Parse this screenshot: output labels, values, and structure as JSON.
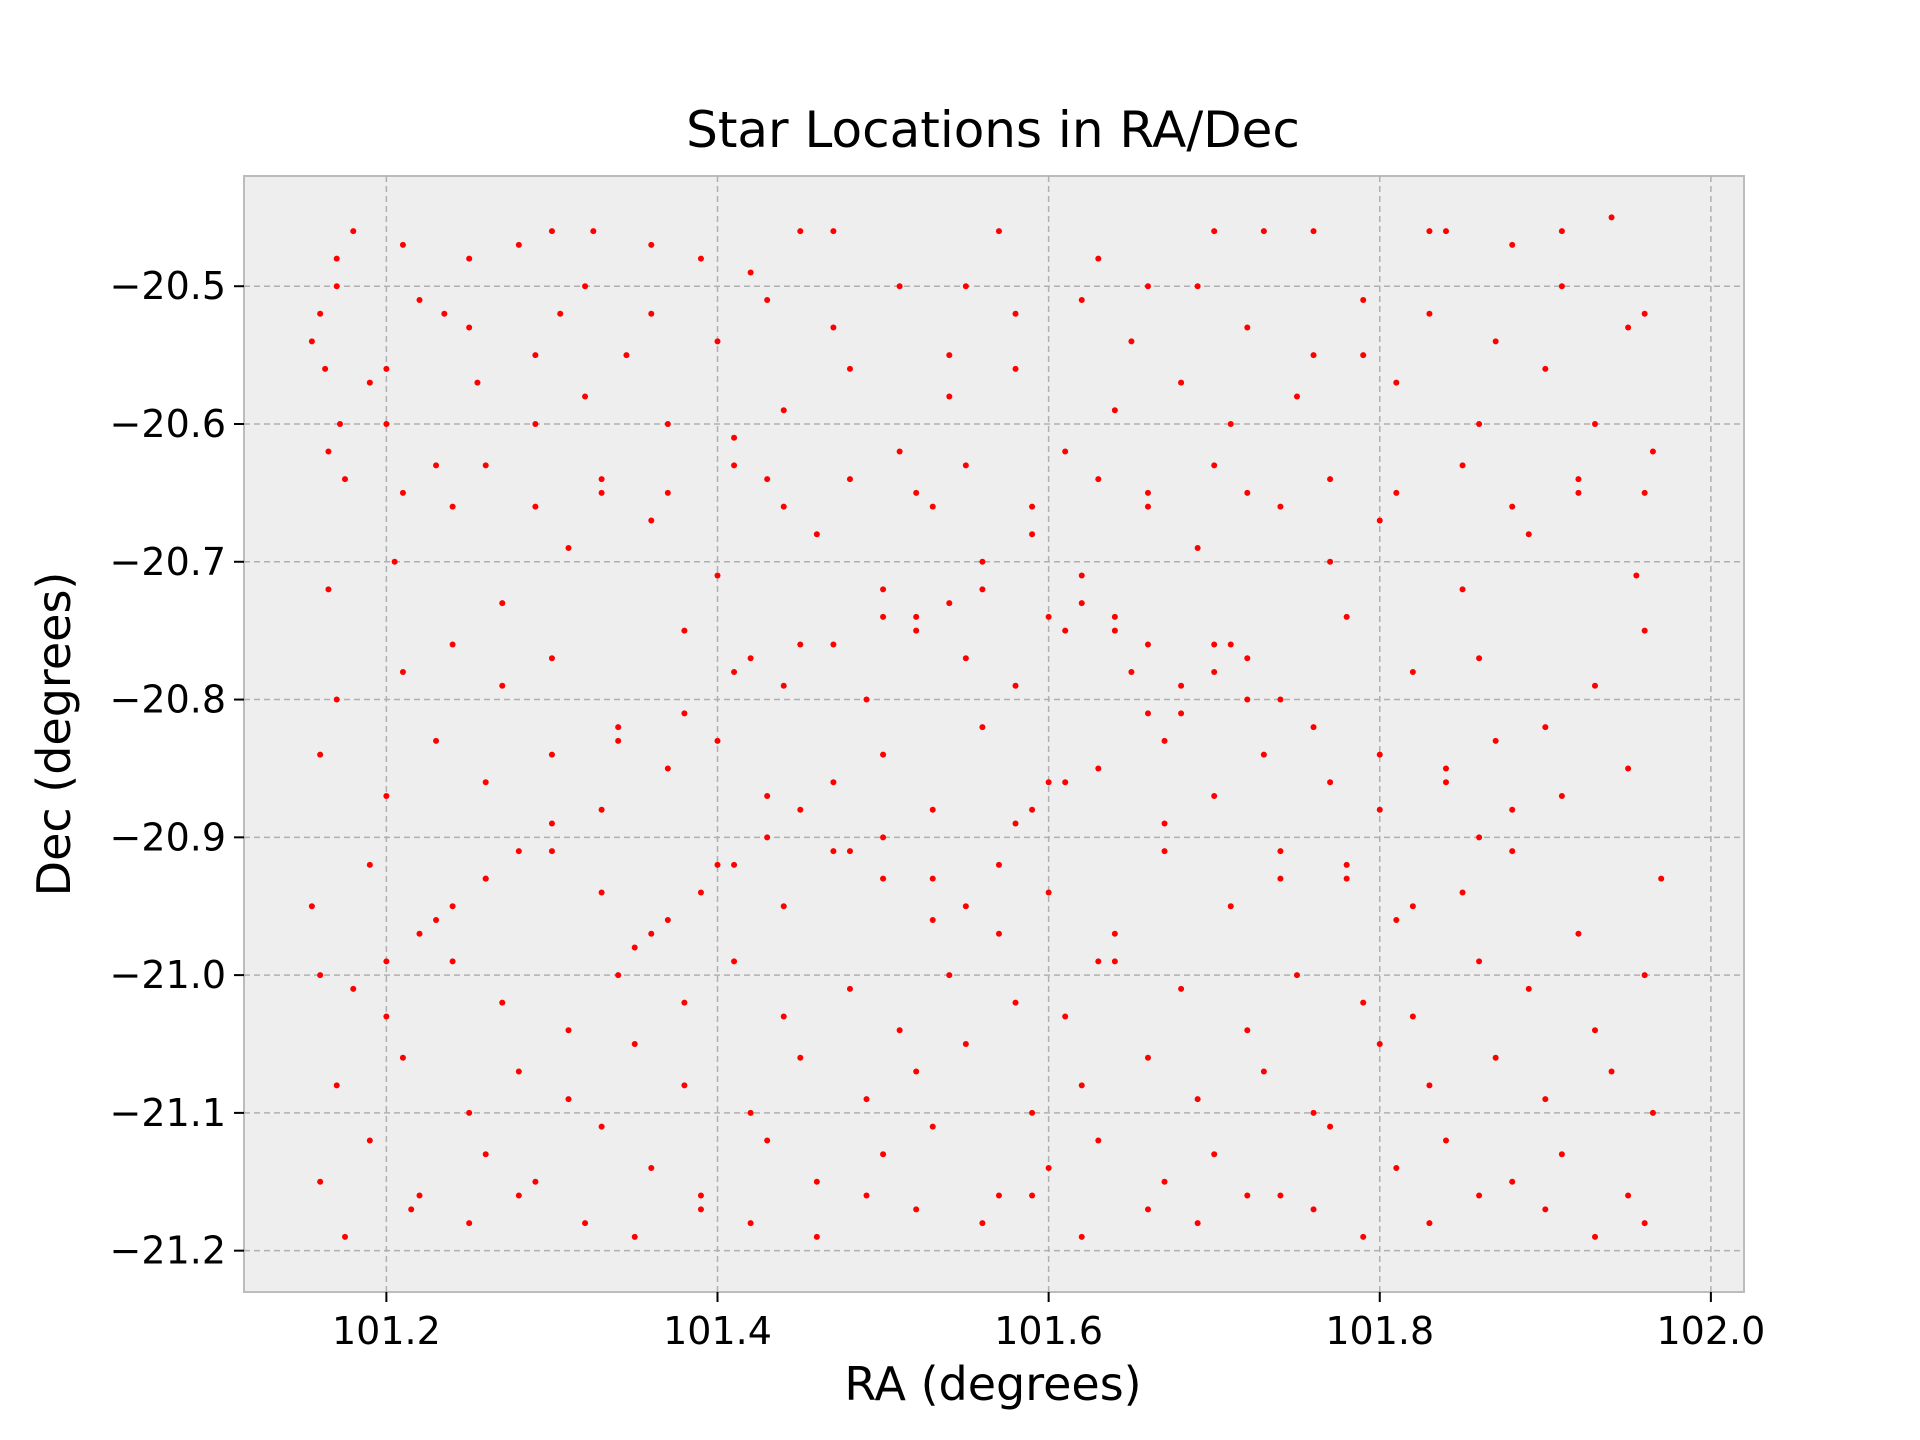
{
  "chart_data": {
    "type": "scatter",
    "title": "Star Locations in RA/Dec",
    "xlabel": "RA (degrees)",
    "ylabel": "Dec (degrees)",
    "xlim": [
      101.114,
      102.02
    ],
    "ylim": [
      -21.23,
      -20.42
    ],
    "xticks": [
      101.2,
      101.4,
      101.6,
      101.8,
      102.0
    ],
    "xtick_labels": [
      "101.2",
      "101.4",
      "101.6",
      "101.8",
      "102.0"
    ],
    "yticks": [
      -20.5,
      -20.6,
      -20.7,
      -20.8,
      -20.9,
      -21.0,
      -21.1,
      -21.2
    ],
    "ytick_labels": [
      "−20.5",
      "−20.6",
      "−20.7",
      "−20.8",
      "−20.9",
      "−21.0",
      "−21.1",
      "−21.2"
    ],
    "grid": true,
    "marker_color": "#ff0000",
    "style": {
      "axes_background": "#eeeeee",
      "axes_edge": "#bcbcbc",
      "grid_color": "#b0b0b0"
    },
    "points": {
      "x": [
        101.155,
        101.16,
        101.163,
        101.17,
        101.172,
        101.18,
        101.19,
        101.2,
        101.21,
        101.235,
        101.25,
        101.28,
        101.3,
        101.305,
        101.325,
        101.36,
        101.39,
        101.42,
        101.45,
        101.47,
        101.55,
        101.57,
        101.63,
        101.66,
        101.7,
        101.73,
        101.76,
        101.83,
        101.84,
        101.88,
        101.91,
        101.94,
        101.96,
        101.165,
        101.2,
        101.23,
        101.255,
        101.29,
        101.32,
        101.345,
        101.37,
        101.41,
        101.44,
        101.48,
        101.51,
        101.54,
        101.58,
        101.61,
        101.64,
        101.68,
        101.71,
        101.75,
        101.79,
        101.81,
        101.86,
        101.9,
        101.93,
        101.965,
        101.165,
        101.205,
        101.24,
        101.27,
        101.31,
        101.33,
        101.36,
        101.4,
        101.43,
        101.46,
        101.5,
        101.53,
        101.56,
        101.59,
        101.62,
        101.66,
        101.69,
        101.72,
        101.77,
        101.8,
        101.85,
        101.89,
        101.92,
        101.955,
        101.17,
        101.21,
        101.24,
        101.27,
        101.3,
        101.34,
        101.38,
        101.41,
        101.45,
        101.49,
        101.52,
        101.55,
        101.58,
        101.61,
        101.65,
        101.68,
        101.71,
        101.74,
        101.78,
        101.82,
        101.86,
        101.9,
        101.93,
        101.96,
        101.16,
        101.2,
        101.23,
        101.26,
        101.3,
        101.33,
        101.37,
        101.4,
        101.43,
        101.47,
        101.5,
        101.53,
        101.56,
        101.6,
        101.63,
        101.67,
        101.7,
        101.73,
        101.77,
        101.8,
        101.84,
        101.87,
        101.91,
        101.95,
        101.155,
        101.19,
        101.23,
        101.26,
        101.3,
        101.33,
        101.36,
        101.4,
        101.44,
        101.47,
        101.5,
        101.53,
        101.57,
        101.6,
        101.64,
        101.67,
        101.71,
        101.74,
        101.78,
        101.81,
        101.85,
        101.88,
        101.92,
        101.97,
        101.16,
        101.2,
        101.24,
        101.27,
        101.31,
        101.34,
        101.38,
        101.41,
        101.44,
        101.48,
        101.51,
        101.54,
        101.58,
        101.61,
        101.64,
        101.68,
        101.72,
        101.75,
        101.79,
        101.82,
        101.86,
        101.89,
        101.93,
        101.96,
        101.17,
        101.21,
        101.25,
        101.28,
        101.31,
        101.35,
        101.38,
        101.42,
        101.45,
        101.49,
        101.52,
        101.55,
        101.59,
        101.62,
        101.66,
        101.69,
        101.73,
        101.76,
        101.8,
        101.83,
        101.87,
        101.9,
        101.94,
        101.965,
        101.16,
        101.19,
        101.22,
        101.26,
        101.29,
        101.33,
        101.36,
        101.39,
        101.43,
        101.46,
        101.5,
        101.53,
        101.57,
        101.6,
        101.63,
        101.67,
        101.7,
        101.74,
        101.77,
        101.81,
        101.84,
        101.88,
        101.91,
        101.95,
        101.175,
        101.215,
        101.25,
        101.28,
        101.32,
        101.35,
        101.39,
        101.42,
        101.46,
        101.49,
        101.52,
        101.56,
        101.59,
        101.62,
        101.66,
        101.69,
        101.72,
        101.76,
        101.79,
        101.83,
        101.86,
        101.9,
        101.93,
        101.96,
        101.17,
        101.22,
        101.25,
        101.29,
        101.32,
        101.36,
        101.4,
        101.43,
        101.47,
        101.51,
        101.54,
        101.58,
        101.62,
        101.65,
        101.69,
        101.72,
        101.76,
        101.79,
        101.83,
        101.87,
        101.91,
        101.95,
        101.175,
        101.21,
        101.26,
        101.29,
        101.33,
        101.37,
        101.41,
        101.44,
        101.48,
        101.52,
        101.55,
        101.59,
        101.63,
        101.66,
        101.7,
        101.74,
        101.77,
        101.81,
        101.85,
        101.88,
        101.92,
        101.96,
        101.5,
        101.52,
        101.54,
        101.47,
        101.56,
        101.6,
        101.62,
        101.64,
        101.42,
        101.44,
        101.38,
        101.34,
        101.7,
        101.72,
        101.68,
        101.66,
        101.58,
        101.5,
        101.48,
        101.53,
        101.55,
        101.57,
        101.63,
        101.45,
        101.43,
        101.41,
        101.39,
        101.37,
        101.35,
        101.61,
        101.59,
        101.67,
        101.74,
        101.78,
        101.82,
        101.86,
        101.88,
        101.84,
        101.8,
        101.76,
        101.72,
        101.7,
        101.66,
        101.64,
        101.3,
        101.28,
        101.26,
        101.24,
        101.22,
        101.2,
        101.18
      ],
      "y": [
        -20.54,
        -20.52,
        -20.56,
        -20.48,
        -20.6,
        -20.46,
        -20.57,
        -20.56,
        -20.47,
        -20.52,
        -20.48,
        -20.47,
        -20.46,
        -20.52,
        -20.46,
        -20.47,
        -20.48,
        -20.49,
        -20.46,
        -20.46,
        -20.5,
        -20.46,
        -20.48,
        -20.5,
        -20.46,
        -20.46,
        -20.46,
        -20.46,
        -20.46,
        -20.47,
        -20.46,
        -20.45,
        -20.52,
        -20.62,
        -20.6,
        -20.63,
        -20.57,
        -20.6,
        -20.58,
        -20.55,
        -20.6,
        -20.61,
        -20.59,
        -20.56,
        -20.62,
        -20.58,
        -20.56,
        -20.62,
        -20.59,
        -20.57,
        -20.6,
        -20.58,
        -20.55,
        -20.57,
        -20.6,
        -20.56,
        -20.6,
        -20.62,
        -20.72,
        -20.7,
        -20.66,
        -20.73,
        -20.69,
        -20.65,
        -20.67,
        -20.71,
        -20.64,
        -20.68,
        -20.72,
        -20.66,
        -20.7,
        -20.68,
        -20.71,
        -20.66,
        -20.69,
        -20.65,
        -20.7,
        -20.67,
        -20.72,
        -20.68,
        -20.65,
        -20.71,
        -20.8,
        -20.78,
        -20.76,
        -20.79,
        -20.77,
        -20.82,
        -20.75,
        -20.78,
        -20.76,
        -20.8,
        -20.74,
        -20.77,
        -20.79,
        -20.75,
        -20.78,
        -20.81,
        -20.76,
        -20.8,
        -20.74,
        -20.78,
        -20.77,
        -20.82,
        -20.79,
        -20.75,
        -20.84,
        -20.87,
        -20.83,
        -20.86,
        -20.84,
        -20.88,
        -20.85,
        -20.83,
        -20.87,
        -20.86,
        -20.84,
        -20.88,
        -20.82,
        -20.86,
        -20.85,
        -20.83,
        -20.87,
        -20.84,
        -20.86,
        -20.88,
        -20.85,
        -20.83,
        -20.87,
        -20.85,
        -20.95,
        -20.92,
        -20.96,
        -20.93,
        -20.91,
        -20.94,
        -20.97,
        -20.92,
        -20.95,
        -20.91,
        -20.93,
        -20.96,
        -20.92,
        -20.94,
        -20.97,
        -20.91,
        -20.95,
        -20.93,
        -20.92,
        -20.96,
        -20.94,
        -20.91,
        -20.97,
        -20.93,
        -21.0,
        -21.03,
        -20.99,
        -21.02,
        -21.04,
        -21.0,
        -21.02,
        -20.99,
        -21.03,
        -21.01,
        -21.04,
        -21.0,
        -21.02,
        -21.03,
        -20.99,
        -21.01,
        -21.04,
        -21.0,
        -21.02,
        -21.03,
        -20.99,
        -21.01,
        -21.04,
        -21.0,
        -21.08,
        -21.06,
        -21.1,
        -21.07,
        -21.09,
        -21.05,
        -21.08,
        -21.1,
        -21.06,
        -21.09,
        -21.07,
        -21.05,
        -21.1,
        -21.08,
        -21.06,
        -21.09,
        -21.07,
        -21.1,
        -21.05,
        -21.08,
        -21.06,
        -21.09,
        -21.07,
        -21.1,
        -21.15,
        -21.12,
        -21.16,
        -21.13,
        -21.15,
        -21.11,
        -21.14,
        -21.16,
        -21.12,
        -21.15,
        -21.13,
        -21.11,
        -21.16,
        -21.14,
        -21.12,
        -21.15,
        -21.13,
        -21.16,
        -21.11,
        -21.14,
        -21.12,
        -21.15,
        -21.13,
        -21.16,
        -21.19,
        -21.17,
        -21.18,
        -21.16,
        -21.18,
        -21.19,
        -21.17,
        -21.18,
        -21.19,
        -21.16,
        -21.17,
        -21.18,
        -21.16,
        -21.19,
        -21.17,
        -21.18,
        -21.16,
        -21.17,
        -21.19,
        -21.18,
        -21.16,
        -21.17,
        -21.19,
        -21.18,
        -20.5,
        -20.51,
        -20.53,
        -20.55,
        -20.5,
        -20.52,
        -20.54,
        -20.51,
        -20.53,
        -20.5,
        -20.55,
        -20.52,
        -20.51,
        -20.54,
        -20.5,
        -20.53,
        -20.55,
        -20.51,
        -20.52,
        -20.54,
        -20.5,
        -20.53,
        -20.64,
        -20.65,
        -20.63,
        -20.66,
        -20.64,
        -20.65,
        -20.63,
        -20.66,
        -20.64,
        -20.65,
        -20.63,
        -20.66,
        -20.64,
        -20.65,
        -20.63,
        -20.66,
        -20.64,
        -20.65,
        -20.63,
        -20.66,
        -20.64,
        -20.65,
        -20.74,
        -20.75,
        -20.73,
        -20.76,
        -20.72,
        -20.74,
        -20.73,
        -20.75,
        -20.77,
        -20.79,
        -20.81,
        -20.83,
        -20.76,
        -20.77,
        -20.79,
        -20.81,
        -20.89,
        -20.9,
        -20.91,
        -20.93,
        -20.95,
        -20.97,
        -20.99,
        -20.88,
        -20.9,
        -20.92,
        -20.94,
        -20.96,
        -20.98,
        -20.86,
        -20.88,
        -20.89,
        -20.91,
        -20.93,
        -20.95,
        -20.9,
        -20.88,
        -20.86,
        -20.84,
        -20.82,
        -20.8,
        -20.78,
        -20.76,
        -20.74,
        -20.89,
        -20.91,
        -20.93,
        -20.95,
        -20.97,
        -20.99,
        -21.01
      ]
    }
  }
}
